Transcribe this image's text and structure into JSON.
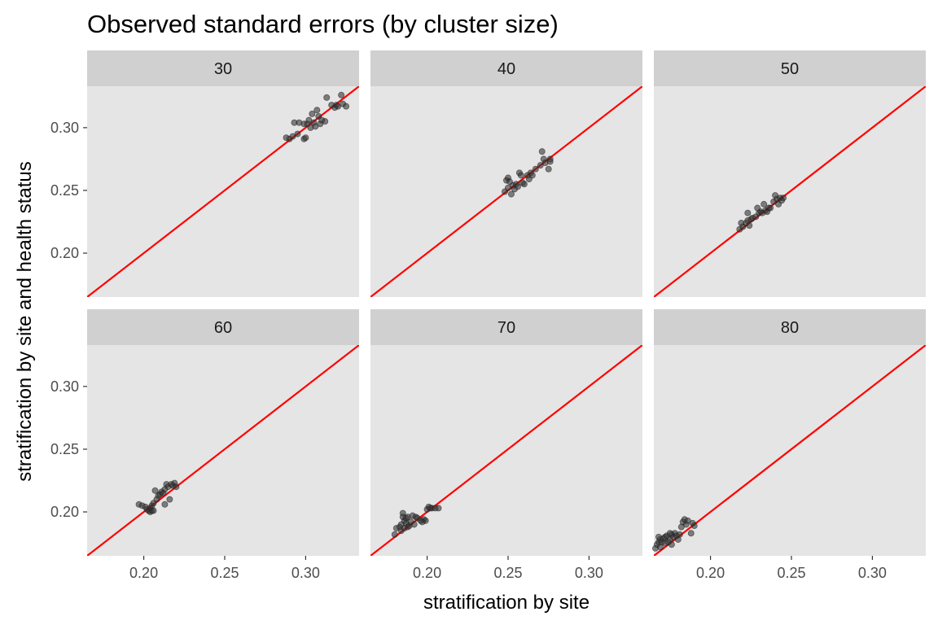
{
  "chart_data": {
    "type": "scatter",
    "title": "Observed standard errors (by cluster size)",
    "xlabel": "stratification by site",
    "ylabel": "stratification by site and health status",
    "xlim": [
      0.165,
      0.333
    ],
    "ylim": [
      0.165,
      0.333
    ],
    "x_ticks": [
      "0.20",
      "0.25",
      "0.30"
    ],
    "y_ticks": [
      "0.20",
      "0.25",
      "0.30"
    ],
    "reference_line": {
      "slope": 1,
      "intercept": 0,
      "color": "#ff0000"
    },
    "point_color": "#333333",
    "panel_background": "#e5e5e5",
    "strip_background": "#d0d0d0",
    "grid": false,
    "panels": [
      {
        "label": "30",
        "points": [
          [
            0.29,
            0.291
          ],
          [
            0.292,
            0.293
          ],
          [
            0.293,
            0.304
          ],
          [
            0.295,
            0.295
          ],
          [
            0.296,
            0.304
          ],
          [
            0.299,
            0.303
          ],
          [
            0.299,
            0.291
          ],
          [
            0.3,
            0.292
          ],
          [
            0.301,
            0.303
          ],
          [
            0.302,
            0.306
          ],
          [
            0.303,
            0.3
          ],
          [
            0.304,
            0.311
          ],
          [
            0.305,
            0.304
          ],
          [
            0.306,
            0.301
          ],
          [
            0.307,
            0.314
          ],
          [
            0.308,
            0.309
          ],
          [
            0.309,
            0.303
          ],
          [
            0.31,
            0.306
          ],
          [
            0.312,
            0.305
          ],
          [
            0.313,
            0.324
          ],
          [
            0.316,
            0.318
          ],
          [
            0.318,
            0.316
          ],
          [
            0.319,
            0.318
          ],
          [
            0.32,
            0.317
          ],
          [
            0.322,
            0.326
          ],
          [
            0.323,
            0.319
          ],
          [
            0.325,
            0.317
          ],
          [
            0.288,
            0.292
          ]
        ]
      },
      {
        "label": "40",
        "points": [
          [
            0.248,
            0.249
          ],
          [
            0.249,
            0.258
          ],
          [
            0.25,
            0.26
          ],
          [
            0.251,
            0.257
          ],
          [
            0.252,
            0.247
          ],
          [
            0.253,
            0.254
          ],
          [
            0.254,
            0.251
          ],
          [
            0.255,
            0.255
          ],
          [
            0.256,
            0.253
          ],
          [
            0.257,
            0.264
          ],
          [
            0.258,
            0.262
          ],
          [
            0.259,
            0.256
          ],
          [
            0.26,
            0.255
          ],
          [
            0.262,
            0.262
          ],
          [
            0.263,
            0.259
          ],
          [
            0.264,
            0.264
          ],
          [
            0.265,
            0.262
          ],
          [
            0.267,
            0.267
          ],
          [
            0.27,
            0.27
          ],
          [
            0.271,
            0.281
          ],
          [
            0.272,
            0.275
          ],
          [
            0.273,
            0.272
          ],
          [
            0.275,
            0.267
          ],
          [
            0.276,
            0.275
          ],
          [
            0.276,
            0.273
          ],
          [
            0.25,
            0.252
          ]
        ]
      },
      {
        "label": "50",
        "points": [
          [
            0.218,
            0.219
          ],
          [
            0.219,
            0.224
          ],
          [
            0.22,
            0.221
          ],
          [
            0.222,
            0.224
          ],
          [
            0.223,
            0.226
          ],
          [
            0.223,
            0.232
          ],
          [
            0.224,
            0.222
          ],
          [
            0.225,
            0.227
          ],
          [
            0.226,
            0.228
          ],
          [
            0.228,
            0.229
          ],
          [
            0.229,
            0.236
          ],
          [
            0.23,
            0.232
          ],
          [
            0.231,
            0.233
          ],
          [
            0.232,
            0.232
          ],
          [
            0.233,
            0.239
          ],
          [
            0.234,
            0.234
          ],
          [
            0.235,
            0.233
          ],
          [
            0.236,
            0.236
          ],
          [
            0.237,
            0.236
          ],
          [
            0.239,
            0.241
          ],
          [
            0.24,
            0.246
          ],
          [
            0.241,
            0.243
          ],
          [
            0.242,
            0.239
          ],
          [
            0.243,
            0.244
          ],
          [
            0.245,
            0.244
          ],
          [
            0.244,
            0.242
          ]
        ]
      },
      {
        "label": "60",
        "points": [
          [
            0.197,
            0.206
          ],
          [
            0.199,
            0.205
          ],
          [
            0.201,
            0.204
          ],
          [
            0.202,
            0.202
          ],
          [
            0.203,
            0.201
          ],
          [
            0.204,
            0.2
          ],
          [
            0.204,
            0.203
          ],
          [
            0.205,
            0.201
          ],
          [
            0.205,
            0.205
          ],
          [
            0.206,
            0.207
          ],
          [
            0.206,
            0.201
          ],
          [
            0.207,
            0.217
          ],
          [
            0.208,
            0.21
          ],
          [
            0.209,
            0.213
          ],
          [
            0.21,
            0.214
          ],
          [
            0.211,
            0.216
          ],
          [
            0.212,
            0.215
          ],
          [
            0.213,
            0.218
          ],
          [
            0.213,
            0.206
          ],
          [
            0.214,
            0.222
          ],
          [
            0.215,
            0.22
          ],
          [
            0.216,
            0.21
          ],
          [
            0.217,
            0.222
          ],
          [
            0.218,
            0.221
          ],
          [
            0.219,
            0.223
          ],
          [
            0.22,
            0.22
          ]
        ]
      },
      {
        "label": "70",
        "points": [
          [
            0.18,
            0.182
          ],
          [
            0.181,
            0.187
          ],
          [
            0.183,
            0.188
          ],
          [
            0.184,
            0.185
          ],
          [
            0.184,
            0.19
          ],
          [
            0.185,
            0.196
          ],
          [
            0.185,
            0.199
          ],
          [
            0.186,
            0.187
          ],
          [
            0.186,
            0.193
          ],
          [
            0.187,
            0.191
          ],
          [
            0.187,
            0.195
          ],
          [
            0.188,
            0.196
          ],
          [
            0.188,
            0.188
          ],
          [
            0.189,
            0.189
          ],
          [
            0.19,
            0.192
          ],
          [
            0.191,
            0.197
          ],
          [
            0.192,
            0.19
          ],
          [
            0.193,
            0.196
          ],
          [
            0.194,
            0.195
          ],
          [
            0.196,
            0.193
          ],
          [
            0.198,
            0.194
          ],
          [
            0.199,
            0.193
          ],
          [
            0.2,
            0.202
          ],
          [
            0.201,
            0.204
          ],
          [
            0.202,
            0.203
          ],
          [
            0.203,
            0.203
          ],
          [
            0.205,
            0.203
          ],
          [
            0.207,
            0.203
          ],
          [
            0.197,
            0.192
          ]
        ]
      },
      {
        "label": "80",
        "points": [
          [
            0.166,
            0.171
          ],
          [
            0.167,
            0.174
          ],
          [
            0.168,
            0.176
          ],
          [
            0.168,
            0.18
          ],
          [
            0.169,
            0.172
          ],
          [
            0.169,
            0.178
          ],
          [
            0.17,
            0.176
          ],
          [
            0.171,
            0.179
          ],
          [
            0.172,
            0.175
          ],
          [
            0.172,
            0.18
          ],
          [
            0.173,
            0.181
          ],
          [
            0.174,
            0.176
          ],
          [
            0.175,
            0.178
          ],
          [
            0.176,
            0.174
          ],
          [
            0.176,
            0.182
          ],
          [
            0.177,
            0.18
          ],
          [
            0.178,
            0.183
          ],
          [
            0.179,
            0.181
          ],
          [
            0.18,
            0.178
          ],
          [
            0.181,
            0.182
          ],
          [
            0.182,
            0.188
          ],
          [
            0.183,
            0.192
          ],
          [
            0.184,
            0.194
          ],
          [
            0.185,
            0.19
          ],
          [
            0.186,
            0.193
          ],
          [
            0.188,
            0.183
          ],
          [
            0.189,
            0.191
          ],
          [
            0.19,
            0.189
          ],
          [
            0.175,
            0.183
          ]
        ]
      }
    ]
  }
}
